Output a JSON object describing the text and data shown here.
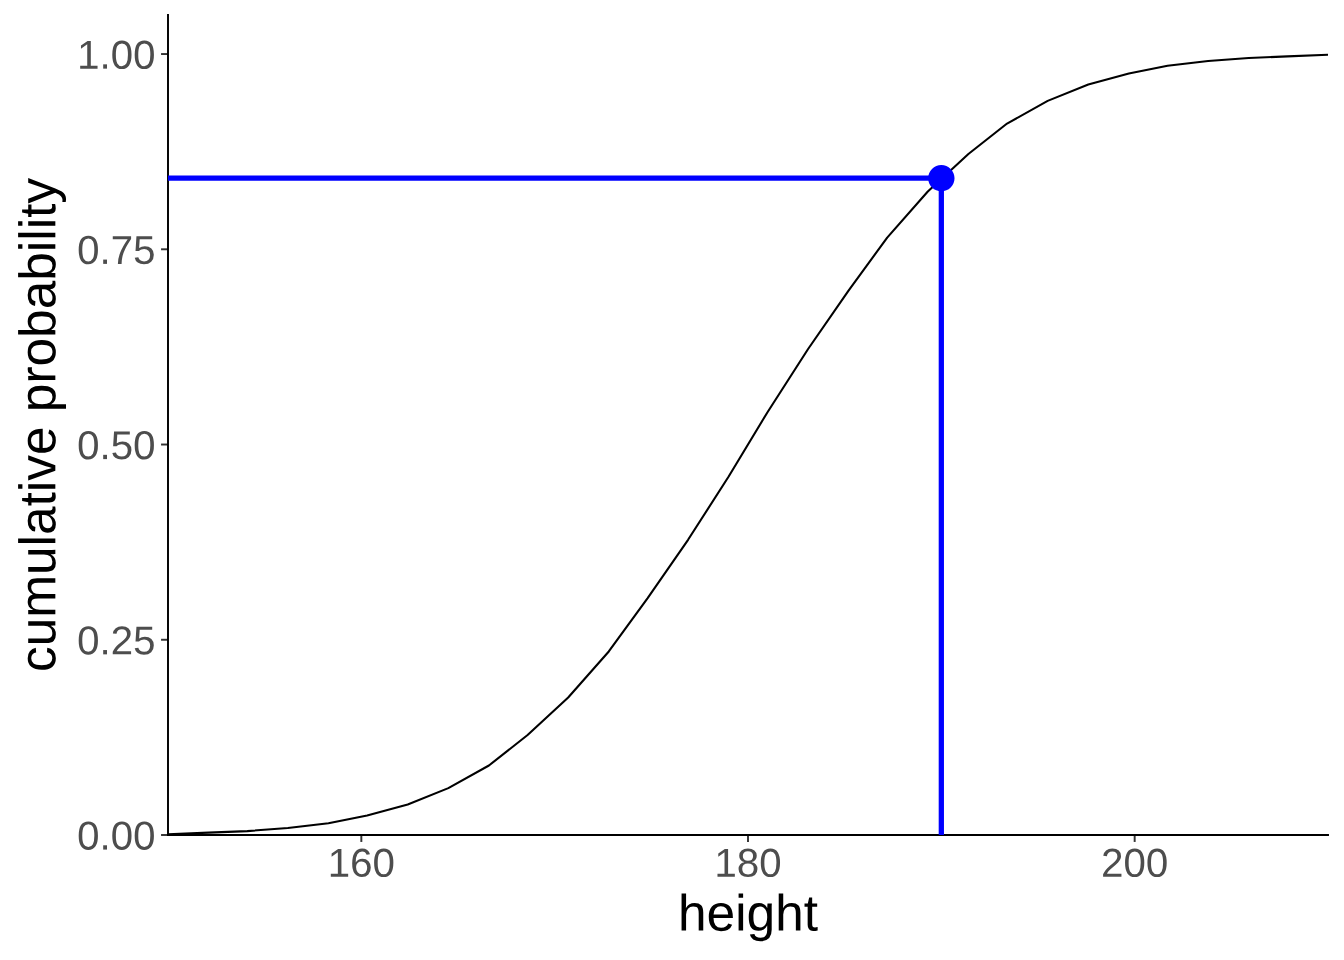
{
  "chart_data": {
    "type": "line",
    "xlabel": "height",
    "ylabel": "cumulative probability",
    "xlim": [
      150,
      210
    ],
    "ylim": [
      0,
      1.05
    ],
    "xticks": [
      160,
      180,
      200
    ],
    "yticks": [
      {
        "value": 0,
        "label": "0.00"
      },
      {
        "value": 0.25,
        "label": "0.25"
      },
      {
        "value": 0.5,
        "label": "0.50"
      },
      {
        "value": 0.75,
        "label": "0.75"
      },
      {
        "value": 1,
        "label": "1.00"
      }
    ],
    "grid": false,
    "marker": "none",
    "line_style": "solid",
    "series": [
      {
        "color": "#000000",
        "x": [
          150,
          152.1,
          154.1,
          156.2,
          158.3,
          160.3,
          162.4,
          164.5,
          166.6,
          168.6,
          170.7,
          172.8,
          174.8,
          176.9,
          179.0,
          181.0,
          183.1,
          185.2,
          187.2,
          189.3,
          191.4,
          193.4,
          195.5,
          197.6,
          199.7,
          201.7,
          203.8,
          205.9,
          207.9,
          210
        ],
        "values": [
          0.001,
          0.003,
          0.005,
          0.009,
          0.015,
          0.025,
          0.039,
          0.06,
          0.089,
          0.128,
          0.176,
          0.235,
          0.303,
          0.378,
          0.459,
          0.541,
          0.622,
          0.697,
          0.765,
          0.824,
          0.872,
          0.911,
          0.94,
          0.961,
          0.975,
          0.985,
          0.991,
          0.995,
          0.997,
          0.999
        ]
      },
      {
        "color": "#0000ff",
        "x": [
          150,
          190
        ],
        "values": [
          0.841,
          0.841
        ]
      },
      {
        "color": "#0000ff",
        "x": [
          190,
          190
        ],
        "values": [
          0,
          0.841
        ]
      },
      {
        "type": "scatter",
        "marker": "circle",
        "color": "#0000ff",
        "x": [
          190
        ],
        "values": [
          0.841
        ]
      }
    ]
  }
}
